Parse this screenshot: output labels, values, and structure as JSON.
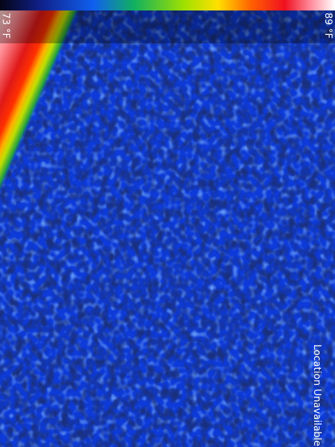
{
  "scale": {
    "min_label": "73 °F",
    "max_label": "89 °F"
  },
  "status": "Location Unavailable"
}
